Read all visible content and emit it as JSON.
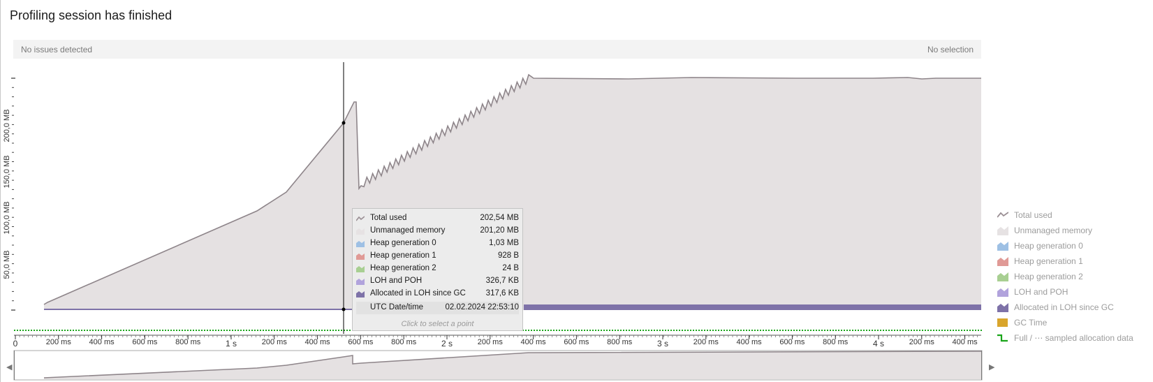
{
  "header": {
    "title": "Profiling session has finished"
  },
  "status": {
    "left": "No issues detected",
    "right": "No selection"
  },
  "y_axis": {
    "ticks": [
      "50,0 MB",
      "100,0 MB",
      "150,0 MB",
      "200,0 MB"
    ]
  },
  "x_axis": {
    "ticks": [
      "0",
      "200 ms",
      "400 ms",
      "600 ms",
      "800 ms",
      "1 s",
      "200 ms",
      "400 ms",
      "600 ms",
      "800 ms",
      "2 s",
      "200 ms",
      "400 ms",
      "600 ms",
      "800 ms",
      "3 s",
      "200 ms",
      "400 ms",
      "600 ms",
      "800 ms",
      "4 s",
      "200 ms",
      "400 ms"
    ]
  },
  "tooltip": {
    "rows": [
      {
        "label": "Total used",
        "value": "202,54 MB",
        "swatch": "line",
        "color": "#9a8f94"
      },
      {
        "label": "Unmanaged memory",
        "value": "201,20 MB",
        "swatch": "area",
        "color": "#e6e2e3"
      },
      {
        "label": "Heap generation 0",
        "value": "1,03 MB",
        "swatch": "area",
        "color": "#9ec0e4"
      },
      {
        "label": "Heap generation 1",
        "value": "928 B",
        "swatch": "area",
        "color": "#e09a96"
      },
      {
        "label": "Heap generation 2",
        "value": "24 B",
        "swatch": "area",
        "color": "#a8cf92"
      },
      {
        "label": "LOH and POH",
        "value": "326,7 KB",
        "swatch": "area",
        "color": "#b1a3dc"
      },
      {
        "label": "Allocated in LOH since GC",
        "value": "317,6 KB",
        "swatch": "area",
        "color": "#7e72a8"
      }
    ],
    "date_label": "UTC Date/time",
    "date_value": "02.02.2024 22:53:10",
    "hint": "Click to select a point"
  },
  "legend": [
    {
      "label": "Total used",
      "icon": "line-icon",
      "color": "#9a8f94"
    },
    {
      "label": "Unmanaged memory",
      "icon": "area-icon",
      "color": "#e6e2e3"
    },
    {
      "label": "Heap generation 0",
      "icon": "area-icon",
      "color": "#9ec0e4"
    },
    {
      "label": "Heap generation 1",
      "icon": "area-icon",
      "color": "#e09a96"
    },
    {
      "label": "Heap generation 2",
      "icon": "area-icon",
      "color": "#a8cf92"
    },
    {
      "label": "LOH and POH",
      "icon": "area-icon",
      "color": "#b1a3dc"
    },
    {
      "label": "Allocated in LOH since GC",
      "icon": "area-icon",
      "color": "#7e72a8"
    },
    {
      "label": "GC Time",
      "icon": "square-icon",
      "color": "#d9a52c"
    },
    {
      "label": "Full / ⋯ sampled allocation data",
      "icon": "step-line-icon",
      "color": "#1aa51a"
    }
  ],
  "colors": {
    "area_fill": "#e5e1e2",
    "line": "#8e858a",
    "loh_band": "#7e72a8",
    "allocation": "#1aa51a",
    "cursor": "#000000"
  }
}
